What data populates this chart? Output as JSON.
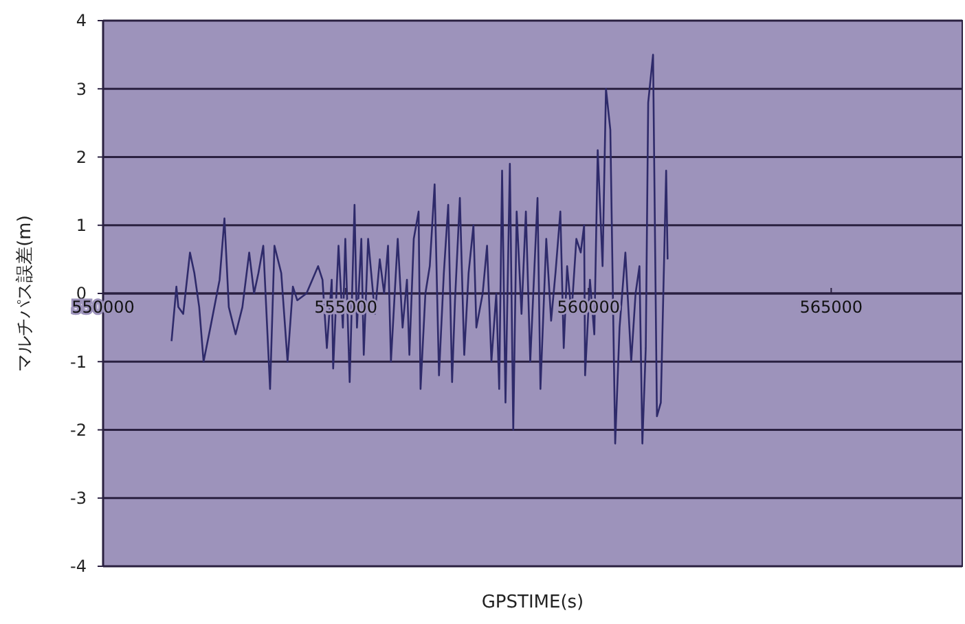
{
  "chart_data": {
    "type": "line",
    "xlabel": "GPSTIME(s)",
    "ylabel": "マルチパス誤差(m)",
    "xlim": [
      550000,
      567700
    ],
    "xticks": [
      550000,
      555000,
      560000,
      565000
    ],
    "ylim": [
      -4,
      4
    ],
    "yticks": [
      -4,
      -3,
      -2,
      -1,
      0,
      1,
      2,
      3,
      4
    ],
    "grid": "y",
    "marker": "none",
    "line_style": "solid",
    "series": [
      {
        "color": "#2e2a6a",
        "x": [
          551410,
          551510,
          551550,
          551650,
          551790,
          551880,
          551980,
          552070,
          552210,
          552400,
          552500,
          552590,
          552730,
          552870,
          553010,
          553110,
          553200,
          553300,
          553440,
          553530,
          553670,
          553800,
          553910,
          554000,
          554190,
          554430,
          554520,
          554610,
          554710,
          554740,
          554850,
          554940,
          554990,
          555080,
          555180,
          555230,
          555320,
          555370,
          555460,
          555600,
          555700,
          555790,
          555870,
          555930,
          556070,
          556170,
          556260,
          556310,
          556400,
          556500,
          556540,
          556640,
          556730,
          556830,
          556920,
          557020,
          557110,
          557190,
          557250,
          557350,
          557440,
          557530,
          557630,
          557690,
          557820,
          557910,
          558000,
          558100,
          558160,
          558220,
          558290,
          558380,
          558450,
          558520,
          558620,
          558710,
          558800,
          558950,
          559010,
          559130,
          559230,
          559320,
          559420,
          559490,
          559560,
          559650,
          559750,
          559840,
          559910,
          559930,
          560030,
          560120,
          560190,
          560290,
          560360,
          560450,
          560550,
          560640,
          560760,
          560880,
          560970,
          561050,
          561110,
          561180,
          561230,
          561330,
          561410,
          561490,
          561600,
          561630
        ],
        "values": [
          -0.7,
          0.1,
          -0.2,
          -0.3,
          0.6,
          0.3,
          -0.2,
          -1.0,
          -0.5,
          0.2,
          1.1,
          -0.2,
          -0.6,
          -0.2,
          0.6,
          0.0,
          0.3,
          0.7,
          -1.4,
          0.7,
          0.3,
          -1.0,
          0.1,
          -0.1,
          0.0,
          0.4,
          0.2,
          -0.8,
          0.2,
          -1.1,
          0.7,
          -0.5,
          0.8,
          -1.3,
          1.3,
          -0.5,
          0.8,
          -0.9,
          0.8,
          -0.3,
          0.5,
          0.0,
          0.7,
          -1.0,
          0.8,
          -0.5,
          0.2,
          -0.9,
          0.8,
          1.2,
          -1.4,
          0.0,
          0.4,
          1.6,
          -1.2,
          0.3,
          1.3,
          -1.3,
          -0.1,
          1.4,
          -0.9,
          0.3,
          1.0,
          -0.5,
          0.0,
          0.7,
          -1.0,
          0.0,
          -1.4,
          1.8,
          -1.6,
          1.9,
          -2.0,
          1.2,
          -0.3,
          1.2,
          -1.0,
          1.4,
          -1.4,
          0.8,
          -0.4,
          0.3,
          1.2,
          -0.8,
          0.4,
          -0.3,
          0.8,
          0.6,
          1.0,
          -1.2,
          0.2,
          -0.6,
          2.1,
          0.4,
          3.0,
          2.4,
          -2.2,
          -0.5,
          0.6,
          -1.0,
          0.0,
          0.4,
          -2.2,
          -0.8,
          2.8,
          3.5,
          -1.8,
          -1.6,
          1.8,
          0.5
        ]
      }
    ]
  }
}
